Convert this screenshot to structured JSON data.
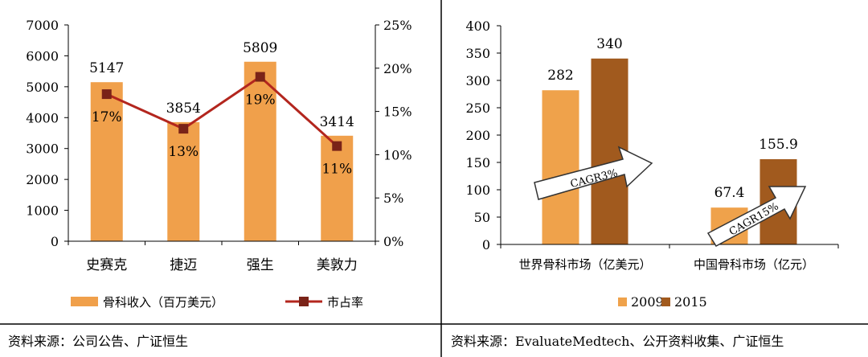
{
  "colors": {
    "bar": "#F0A04B",
    "bar_light": "#EFA24B",
    "bar_dark": "#A15A1E",
    "line": "#B3261E",
    "marker": "#7A2318",
    "divider": "#000000",
    "arrow_fill": "#ffffff",
    "arrow_stroke": "#333333"
  },
  "chart_data": [
    {
      "type": "bar+line",
      "categories": [
        "史赛克",
        "捷迈",
        "强生",
        "美敦力"
      ],
      "series": [
        {
          "name": "骨科收入（百万美元）",
          "type": "bar",
          "axis": "left",
          "values": [
            5147,
            3854,
            5809,
            3414
          ],
          "labels": [
            "5147",
            "3854",
            "5809",
            "3414"
          ]
        },
        {
          "name": "市占率",
          "type": "line",
          "axis": "right",
          "values": [
            17,
            13,
            19,
            11
          ],
          "labels": [
            "17%",
            "13%",
            "19%",
            "11%"
          ]
        }
      ],
      "y_left": {
        "min": 0,
        "max": 7000,
        "ticks": [
          "0",
          "1000",
          "2000",
          "3000",
          "4000",
          "5000",
          "6000",
          "7000"
        ]
      },
      "y_right": {
        "min": 0,
        "max": 25,
        "ticks": [
          "0%",
          "5%",
          "10%",
          "15%",
          "20%",
          "25%"
        ]
      },
      "legend_position": "bottom",
      "grid": false
    },
    {
      "type": "bar",
      "categories": [
        "世界骨科市场（亿美元）",
        "中国骨科市场（亿元）"
      ],
      "series": [
        {
          "name": "2009",
          "values": [
            282,
            67.4
          ],
          "labels": [
            "282",
            "67.4"
          ]
        },
        {
          "name": "2015",
          "values": [
            340,
            155.9
          ],
          "labels": [
            "340",
            "155.9"
          ]
        }
      ],
      "y": {
        "min": 0,
        "max": 400,
        "ticks": [
          "0",
          "50",
          "100",
          "150",
          "200",
          "250",
          "300",
          "350",
          "400"
        ]
      },
      "annotations": [
        "CAGR3%",
        "CAGR15%"
      ],
      "legend_position": "bottom",
      "grid": false
    }
  ],
  "sources": {
    "left": "资料来源：公司公告、广证恒生",
    "right": "资料来源：EvaluateMedtech、公开资料收集、广证恒生"
  }
}
